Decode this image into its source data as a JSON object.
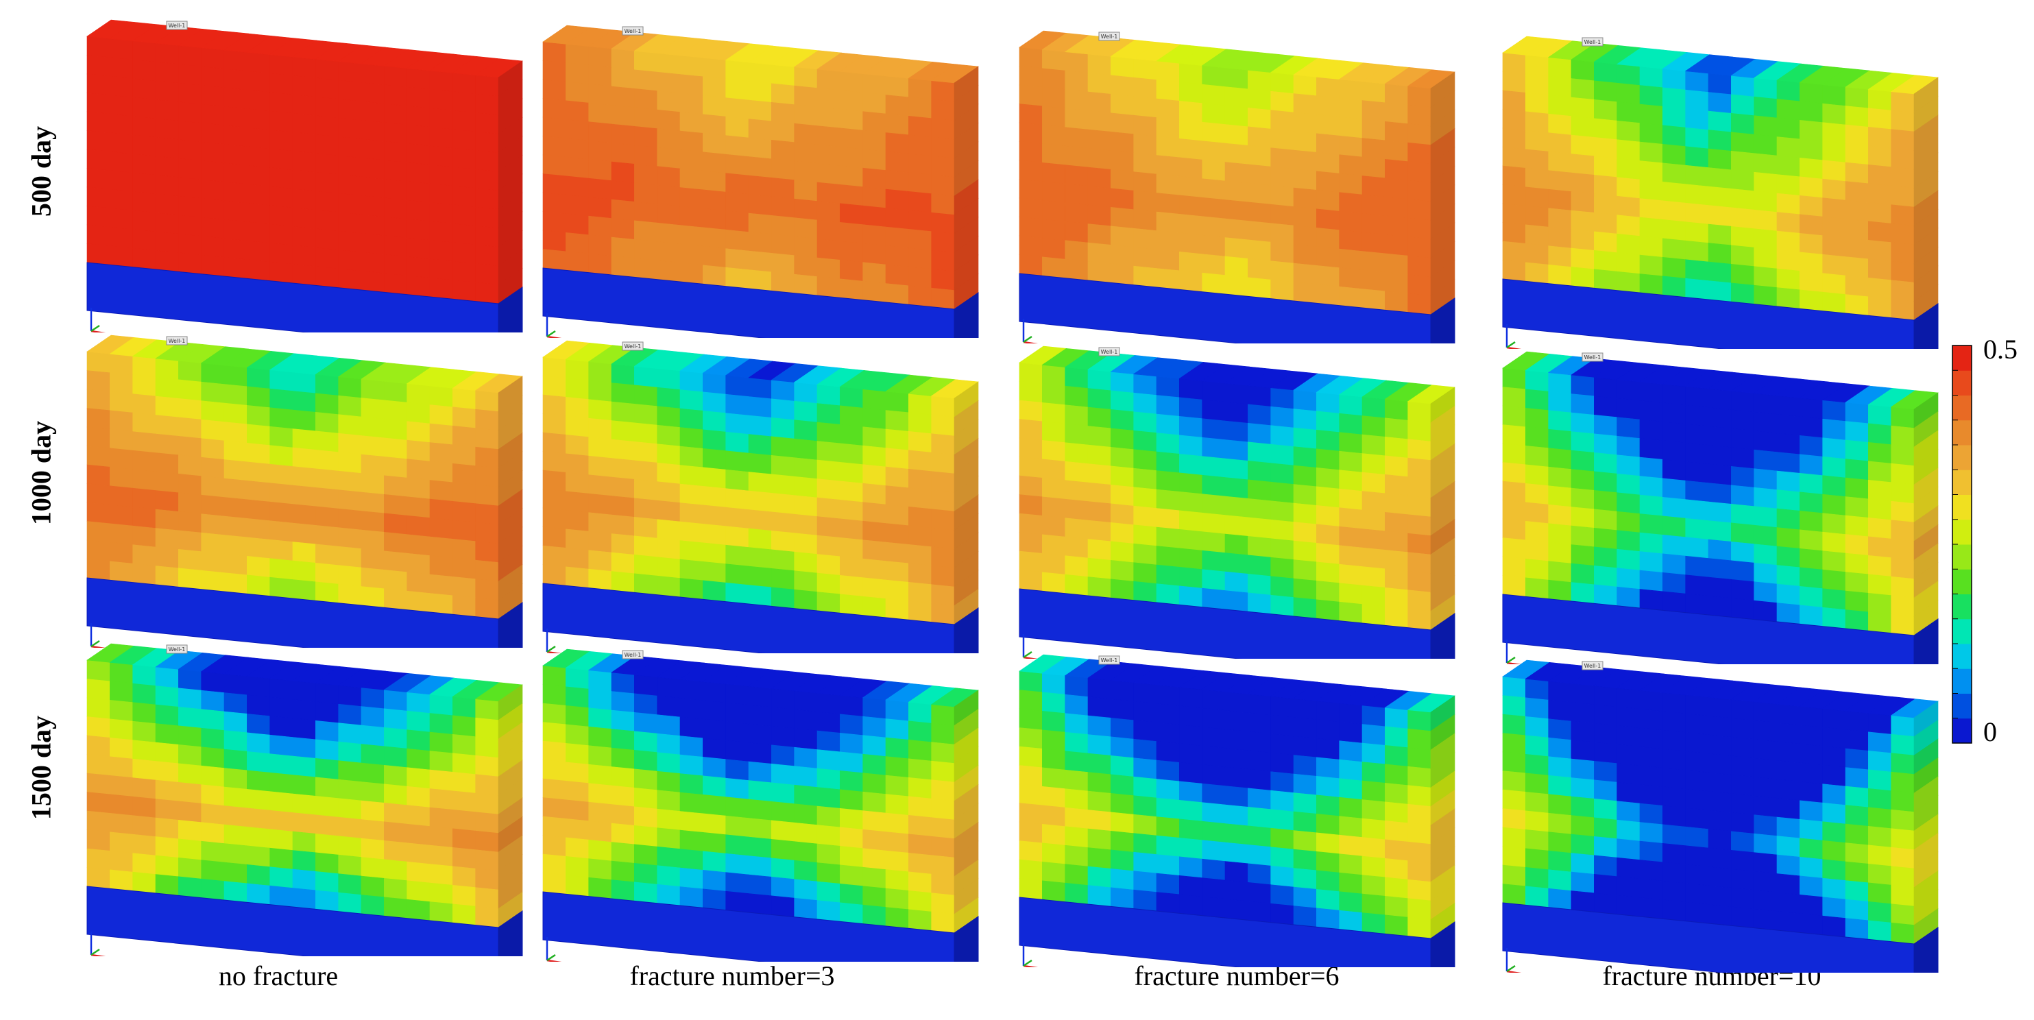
{
  "row_labels": [
    "500 day",
    "1000 day",
    "1500 day"
  ],
  "column_labels": [
    "no fracture",
    "fracture number=3",
    "fracture number=6",
    "fracture number=10"
  ],
  "colorbar": {
    "max_label": "0.5",
    "min_label": "0",
    "range": [
      0,
      0.5
    ],
    "colors": [
      "#0a18d0",
      "#0050e0",
      "#0090f0",
      "#00c8e8",
      "#00e6b4",
      "#18e060",
      "#58e020",
      "#98e818",
      "#d0ee10",
      "#f0e020",
      "#f0c030",
      "#eca434",
      "#e88a2c",
      "#e86a24",
      "#e84a1c",
      "#e42414"
    ]
  },
  "well_tag": "Well-1",
  "panels": [
    {
      "row": 0,
      "col": 0,
      "level": 0.0
    },
    {
      "row": 0,
      "col": 1,
      "level": 0.25
    },
    {
      "row": 0,
      "col": 2,
      "level": 0.3
    },
    {
      "row": 0,
      "col": 3,
      "level": 0.45
    },
    {
      "row": 1,
      "col": 0,
      "level": 0.5
    },
    {
      "row": 1,
      "col": 1,
      "level": 0.6
    },
    {
      "row": 1,
      "col": 2,
      "level": 0.65
    },
    {
      "row": 1,
      "col": 3,
      "level": 0.75
    },
    {
      "row": 2,
      "col": 0,
      "level": 0.85
    },
    {
      "row": 2,
      "col": 1,
      "level": 0.9
    },
    {
      "row": 2,
      "col": 2,
      "level": 0.93
    },
    {
      "row": 2,
      "col": 3,
      "level": 1.0
    }
  ]
}
